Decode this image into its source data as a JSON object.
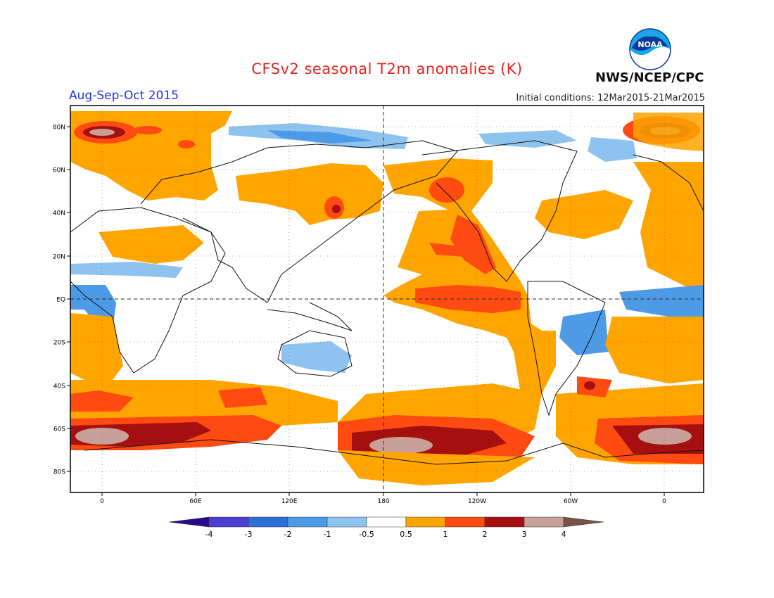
{
  "title": "CFSv2 seasonal T2m anomalies (K)",
  "season": "Aug-Sep-Oct 2015",
  "initial_conditions": "Initial conditions: 12Mar2015-21Mar2015",
  "agency": "NWS/NCEP/CPC",
  "logo_text": "NOAA",
  "lat_labels": [
    "80N",
    "60N",
    "40N",
    "20N",
    "EQ",
    "20S",
    "40S",
    "60S",
    "80S"
  ],
  "lon_labels": [
    "0",
    "60E",
    "120E",
    "180",
    "120W",
    "60W",
    "0"
  ],
  "colorbar": {
    "labels": [
      "-4",
      "-3",
      "-2",
      "-1",
      "-0.5",
      "0.5",
      "1",
      "2",
      "3",
      "4"
    ],
    "colors": [
      "#2a0a8c",
      "#4a3fd0",
      "#2e6fd8",
      "#4d9be6",
      "#8ec3f0",
      "#ffffff",
      "#ffa500",
      "#ff4a12",
      "#a50f0f",
      "#c8a098",
      "#7a5248"
    ]
  },
  "colors": {
    "weak_warm": "#ffa500",
    "warm": "#ff4a12",
    "hot": "#a50f0f",
    "very_hot": "#c8a098",
    "weak_cool": "#8ec3f0",
    "cool": "#4d9be6",
    "cold": "#2e6fd8"
  }
}
